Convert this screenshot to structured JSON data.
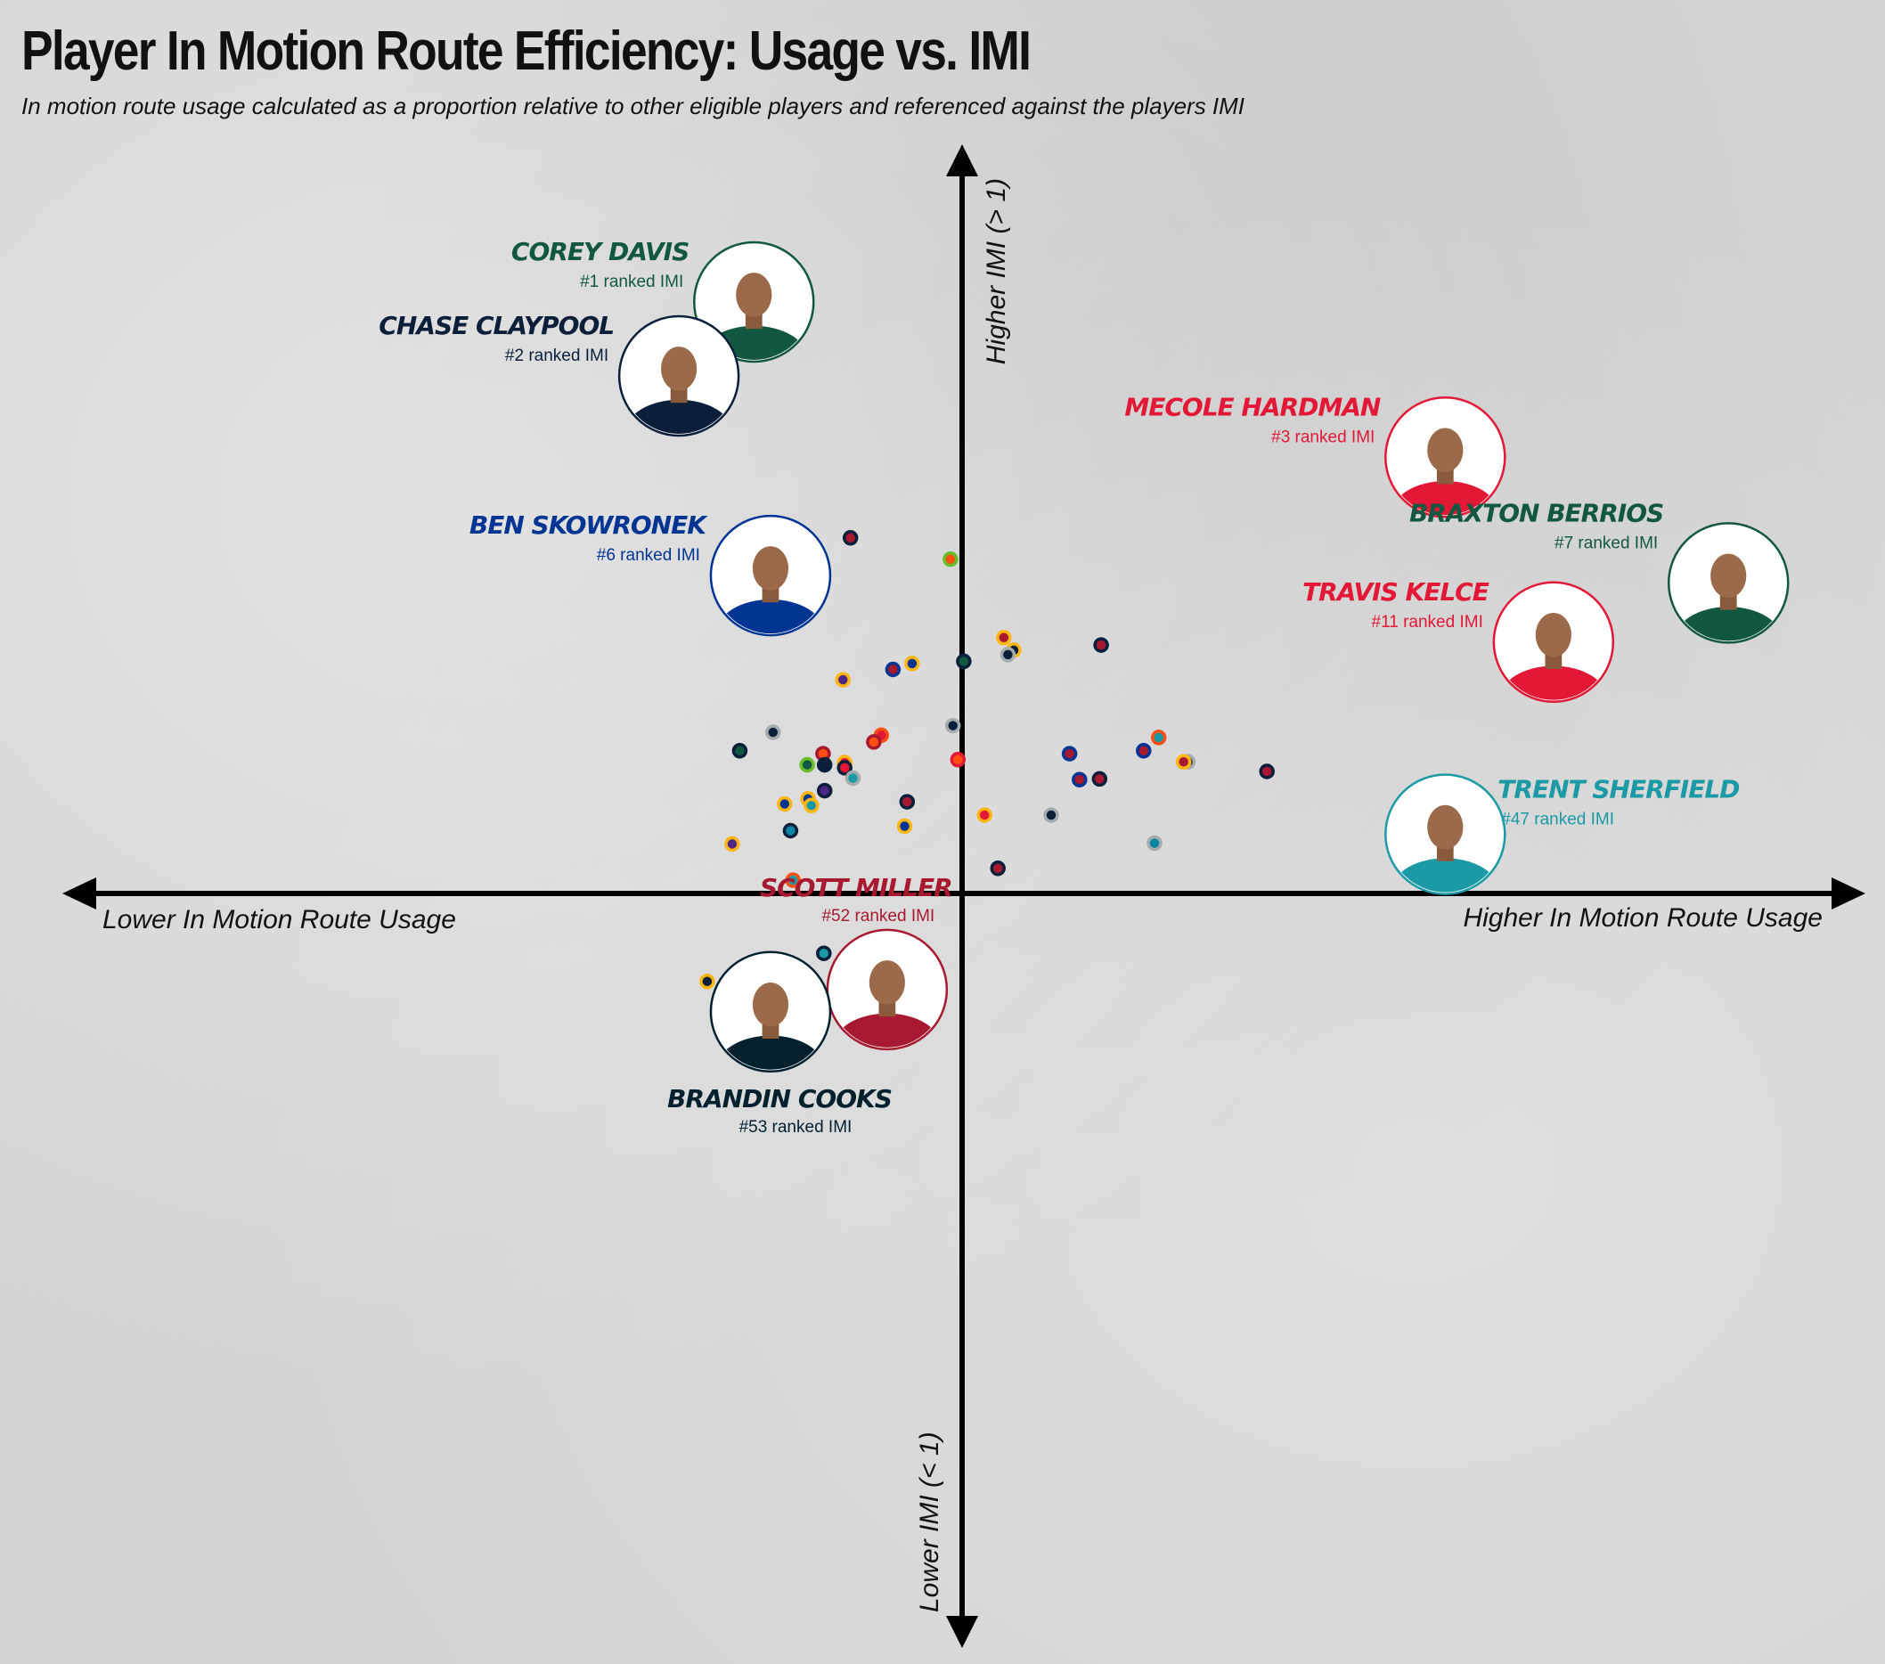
{
  "header": {
    "title": "Player In Motion Route Efficiency: Usage vs. IMI",
    "subtitle": "In motion route usage calculated as a proportion relative to other eligible players and referenced against the players IMI"
  },
  "chart_data": {
    "type": "scatter",
    "title": "Player In Motion Route Efficiency: Usage vs. IMI",
    "axes": {
      "x_low_label": "Lower In Motion Route Usage",
      "x_high_label": "Higher In Motion Route Usage",
      "y_high_label": "Higher IMI (> 1)",
      "y_low_label": "Lower IMI (< 1)",
      "xlim": [
        -1,
        1
      ],
      "ylim": [
        -1,
        1
      ],
      "grid": false
    },
    "highlighted_players": [
      {
        "name": "COREY DAVIS",
        "rank": "#1 ranked IMI",
        "x": -0.25,
        "y": 0.8,
        "color": "#125740"
      },
      {
        "name": "CHASE CLAYPOOL",
        "rank": "#2 ranked IMI",
        "x": -0.34,
        "y": 0.7,
        "color": "#0b1f3a"
      },
      {
        "name": "MECOLE HARDMAN",
        "rank": "#3 ranked IMI",
        "x": 0.58,
        "y": 0.59,
        "color": "#e31837"
      },
      {
        "name": "BEN SKOWRONEK",
        "rank": "#6 ranked IMI",
        "x": -0.23,
        "y": 0.43,
        "color": "#003594"
      },
      {
        "name": "BRAXTON BERRIOS",
        "rank": "#7 ranked IMI",
        "x": 0.92,
        "y": 0.42,
        "color": "#125740"
      },
      {
        "name": "TRAVIS KELCE",
        "rank": "#11 ranked IMI",
        "x": 0.71,
        "y": 0.34,
        "color": "#e31837"
      },
      {
        "name": "TRENT SHERFIELD",
        "rank": "#47 ranked IMI",
        "x": 0.58,
        "y": 0.08,
        "color": "#1b9aa6"
      },
      {
        "name": "SCOTT MILLER",
        "rank": "#52 ranked IMI",
        "x": -0.09,
        "y": -0.13,
        "color": "#a71930"
      },
      {
        "name": "BRANDIN COOKS",
        "rank": "#53 ranked IMI",
        "x": -0.23,
        "y": -0.16,
        "color": "#03202f"
      }
    ],
    "points": [
      {
        "x": -0.134,
        "y": 0.481,
        "fill": "#a71930",
        "ring": "#0b1f3a"
      },
      {
        "x": -0.014,
        "y": 0.452,
        "fill": "#fb4f14",
        "ring": "#69be28"
      },
      {
        "x": -0.25,
        "y": 0.393,
        "fill": "#125740",
        "ring": "#0b1f3a"
      },
      {
        "x": 0.05,
        "y": 0.346,
        "fill": "#a71930",
        "ring": "#ffb612"
      },
      {
        "x": 0.062,
        "y": 0.329,
        "fill": "#0b1f3a",
        "ring": "#ffb612"
      },
      {
        "x": 0.055,
        "y": 0.323,
        "fill": "#0b1f3a",
        "ring": "#a5acaf"
      },
      {
        "x": 0.167,
        "y": 0.336,
        "fill": "#a71930",
        "ring": "#0b1f3a"
      },
      {
        "x": -0.083,
        "y": 0.303,
        "fill": "#a71930",
        "ring": "#003594"
      },
      {
        "x": -0.06,
        "y": 0.311,
        "fill": "#003594",
        "ring": "#ffb612"
      },
      {
        "x": -0.143,
        "y": 0.289,
        "fill": "#4f2683",
        "ring": "#ffb612"
      },
      {
        "x": 0.002,
        "y": 0.314,
        "fill": "#125740",
        "ring": "#0b1f3a"
      },
      {
        "x": -0.011,
        "y": 0.227,
        "fill": "#0b1f3a",
        "ring": "#a5acaf"
      },
      {
        "x": -0.227,
        "y": 0.218,
        "fill": "#0b1f3a",
        "ring": "#a5acaf"
      },
      {
        "x": -0.097,
        "y": 0.214,
        "fill": "#e31837",
        "ring": "#fb4f14"
      },
      {
        "x": -0.106,
        "y": 0.205,
        "fill": "#fb4f14",
        "ring": "#a71930"
      },
      {
        "x": -0.267,
        "y": 0.193,
        "fill": "#125740",
        "ring": "#0b1f3a"
      },
      {
        "x": -0.167,
        "y": 0.189,
        "fill": "#fb4f14",
        "ring": "#a71930"
      },
      {
        "x": -0.005,
        "y": 0.181,
        "fill": "#fb4f14",
        "ring": "#e31837"
      },
      {
        "x": 0.236,
        "y": 0.211,
        "fill": "#1b9aa6",
        "ring": "#fb4f14"
      },
      {
        "x": 0.218,
        "y": 0.193,
        "fill": "#a71930",
        "ring": "#003594"
      },
      {
        "x": 0.129,
        "y": 0.189,
        "fill": "#a71930",
        "ring": "#003594"
      },
      {
        "x": 0.271,
        "y": 0.178,
        "fill": "#0b1f3a",
        "ring": "#a5acaf"
      },
      {
        "x": 0.266,
        "y": 0.178,
        "fill": "#a71930",
        "ring": "#ffb612"
      },
      {
        "x": -0.141,
        "y": 0.177,
        "fill": "#e31837",
        "ring": "#ffb612"
      },
      {
        "x": -0.141,
        "y": 0.17,
        "fill": "#e31837",
        "ring": "#0b1f3a"
      },
      {
        "x": -0.186,
        "y": 0.174,
        "fill": "#125740",
        "ring": "#69be28"
      },
      {
        "x": -0.165,
        "y": 0.174,
        "fill": "#0b1f3a",
        "ring": "#0b1f3a"
      },
      {
        "x": -0.131,
        "y": 0.156,
        "fill": "#1b9aa6",
        "ring": "#a5acaf"
      },
      {
        "x": 0.141,
        "y": 0.154,
        "fill": "#a71930",
        "ring": "#003594"
      },
      {
        "x": 0.165,
        "y": 0.155,
        "fill": "#a71930",
        "ring": "#0b1f3a"
      },
      {
        "x": 0.366,
        "y": 0.165,
        "fill": "#a71930",
        "ring": "#0b1f3a"
      },
      {
        "x": -0.165,
        "y": 0.139,
        "fill": "#4f2683",
        "ring": "#0b1f3a"
      },
      {
        "x": -0.185,
        "y": 0.128,
        "fill": "#003594",
        "ring": "#ffb612"
      },
      {
        "x": -0.213,
        "y": 0.121,
        "fill": "#003594",
        "ring": "#ffb612"
      },
      {
        "x": -0.181,
        "y": 0.119,
        "fill": "#1b9aa6",
        "ring": "#ffb612"
      },
      {
        "x": -0.066,
        "y": 0.124,
        "fill": "#a71930",
        "ring": "#0b1f3a"
      },
      {
        "x": 0.027,
        "y": 0.106,
        "fill": "#e31837",
        "ring": "#ffb612"
      },
      {
        "x": 0.107,
        "y": 0.106,
        "fill": "#0b1f3a",
        "ring": "#a5acaf"
      },
      {
        "x": -0.206,
        "y": 0.085,
        "fill": "#0b84a5",
        "ring": "#0b1f3a"
      },
      {
        "x": -0.069,
        "y": 0.091,
        "fill": "#003594",
        "ring": "#ffb612"
      },
      {
        "x": -0.276,
        "y": 0.067,
        "fill": "#4f2683",
        "ring": "#ffb612"
      },
      {
        "x": 0.231,
        "y": 0.068,
        "fill": "#0b84a5",
        "ring": "#a5acaf"
      },
      {
        "x": 0.043,
        "y": 0.034,
        "fill": "#a71930",
        "ring": "#0b1f3a"
      },
      {
        "x": -0.203,
        "y": 0.018,
        "fill": "#1b9aa6",
        "ring": "#fb4f14"
      },
      {
        "x": -0.166,
        "y": -0.081,
        "fill": "#1b9aa6",
        "ring": "#0b1f3a"
      },
      {
        "x": -0.306,
        "y": -0.119,
        "fill": "#0b1f3a",
        "ring": "#ffb612"
      }
    ]
  }
}
